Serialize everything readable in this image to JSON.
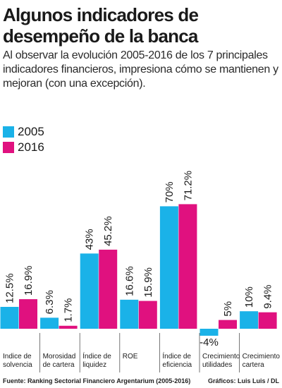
{
  "header": {
    "title": "Algunos indicadores de desempeño de la banca",
    "subtitle": "Al observar la evolución 2005-2016 de los 7 principales indicadores financieros, impresiona cómo se mantienen y mejoran (con una excepción)."
  },
  "colors": {
    "series_2005": "#1ab2e8",
    "series_2016": "#e0117f",
    "text": "#1a1a1a",
    "separator": "#555555"
  },
  "footer": {
    "source": "Fuente:  Ranking Sectorial Financiero Argentarium (2005-2016)",
    "credit": "Gráficos: Luis Luis / DL"
  },
  "chart_data": {
    "type": "bar",
    "categories": [
      [
        "Indice de",
        "solvencia"
      ],
      [
        "Morosidad",
        "de cartera"
      ],
      [
        "Índice de",
        "liquidez"
      ],
      [
        "ROE"
      ],
      [
        "Índice de",
        "eficiencia"
      ],
      [
        "Crecimiento",
        "utilidades"
      ],
      [
        "Crecimiento",
        "cartera"
      ]
    ],
    "series": [
      {
        "name": "2005",
        "values": [
          12.5,
          6.3,
          43,
          16.6,
          70,
          -4,
          10
        ],
        "labels": [
          "12.5%",
          "6.3%",
          "43%",
          "16.6%",
          "70%",
          "-4%",
          "10%"
        ]
      },
      {
        "name": "2016",
        "values": [
          16.9,
          1.7,
          45.2,
          15.9,
          71.2,
          5,
          9.4
        ],
        "labels": [
          "16.9%",
          "1.7%",
          "45.2%",
          "15.9%",
          "71.2%",
          "5%",
          "9.4%"
        ]
      }
    ],
    "legend": "top-left",
    "grid": false
  }
}
